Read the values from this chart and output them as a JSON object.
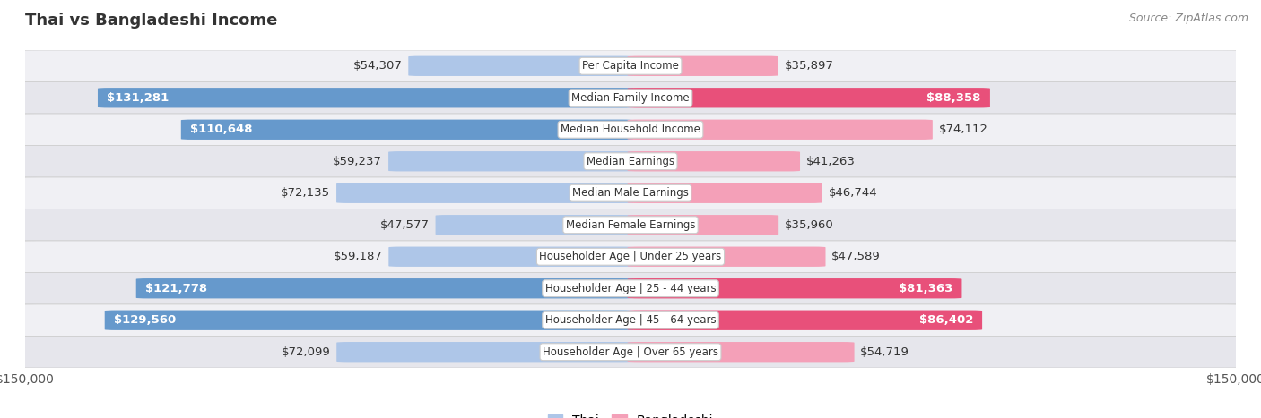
{
  "title": "Thai vs Bangladeshi Income",
  "source": "Source: ZipAtlas.com",
  "categories": [
    "Per Capita Income",
    "Median Family Income",
    "Median Household Income",
    "Median Earnings",
    "Median Male Earnings",
    "Median Female Earnings",
    "Householder Age | Under 25 years",
    "Householder Age | 25 - 44 years",
    "Householder Age | 45 - 64 years",
    "Householder Age | Over 65 years"
  ],
  "thai_values": [
    54307,
    131281,
    110648,
    59237,
    72135,
    47577,
    59187,
    121778,
    129560,
    72099
  ],
  "bangladeshi_values": [
    35897,
    88358,
    74112,
    41263,
    46744,
    35960,
    47589,
    81363,
    86402,
    54719
  ],
  "thai_labels": [
    "$54,307",
    "$131,281",
    "$110,648",
    "$59,237",
    "$72,135",
    "$47,577",
    "$59,187",
    "$121,778",
    "$129,560",
    "$72,099"
  ],
  "bangladeshi_labels": [
    "$35,897",
    "$88,358",
    "$74,112",
    "$41,263",
    "$46,744",
    "$35,960",
    "$47,589",
    "$81,363",
    "$86,402",
    "$54,719"
  ],
  "max_val": 150000,
  "thai_color_light": "#aec6e8",
  "thai_color_dark": "#6699cc",
  "bangladeshi_color_light": "#f4a0b8",
  "bangladeshi_color_dark": "#e8507a",
  "inside_label_threshold": 80000,
  "bar_height": 0.62,
  "row_bg_color": "#f0f0f4",
  "row_alt_color": "#e6e6ec",
  "label_fontsize": 9.5,
  "title_fontsize": 13,
  "legend_fontsize": 10,
  "cat_fontsize": 8.5
}
